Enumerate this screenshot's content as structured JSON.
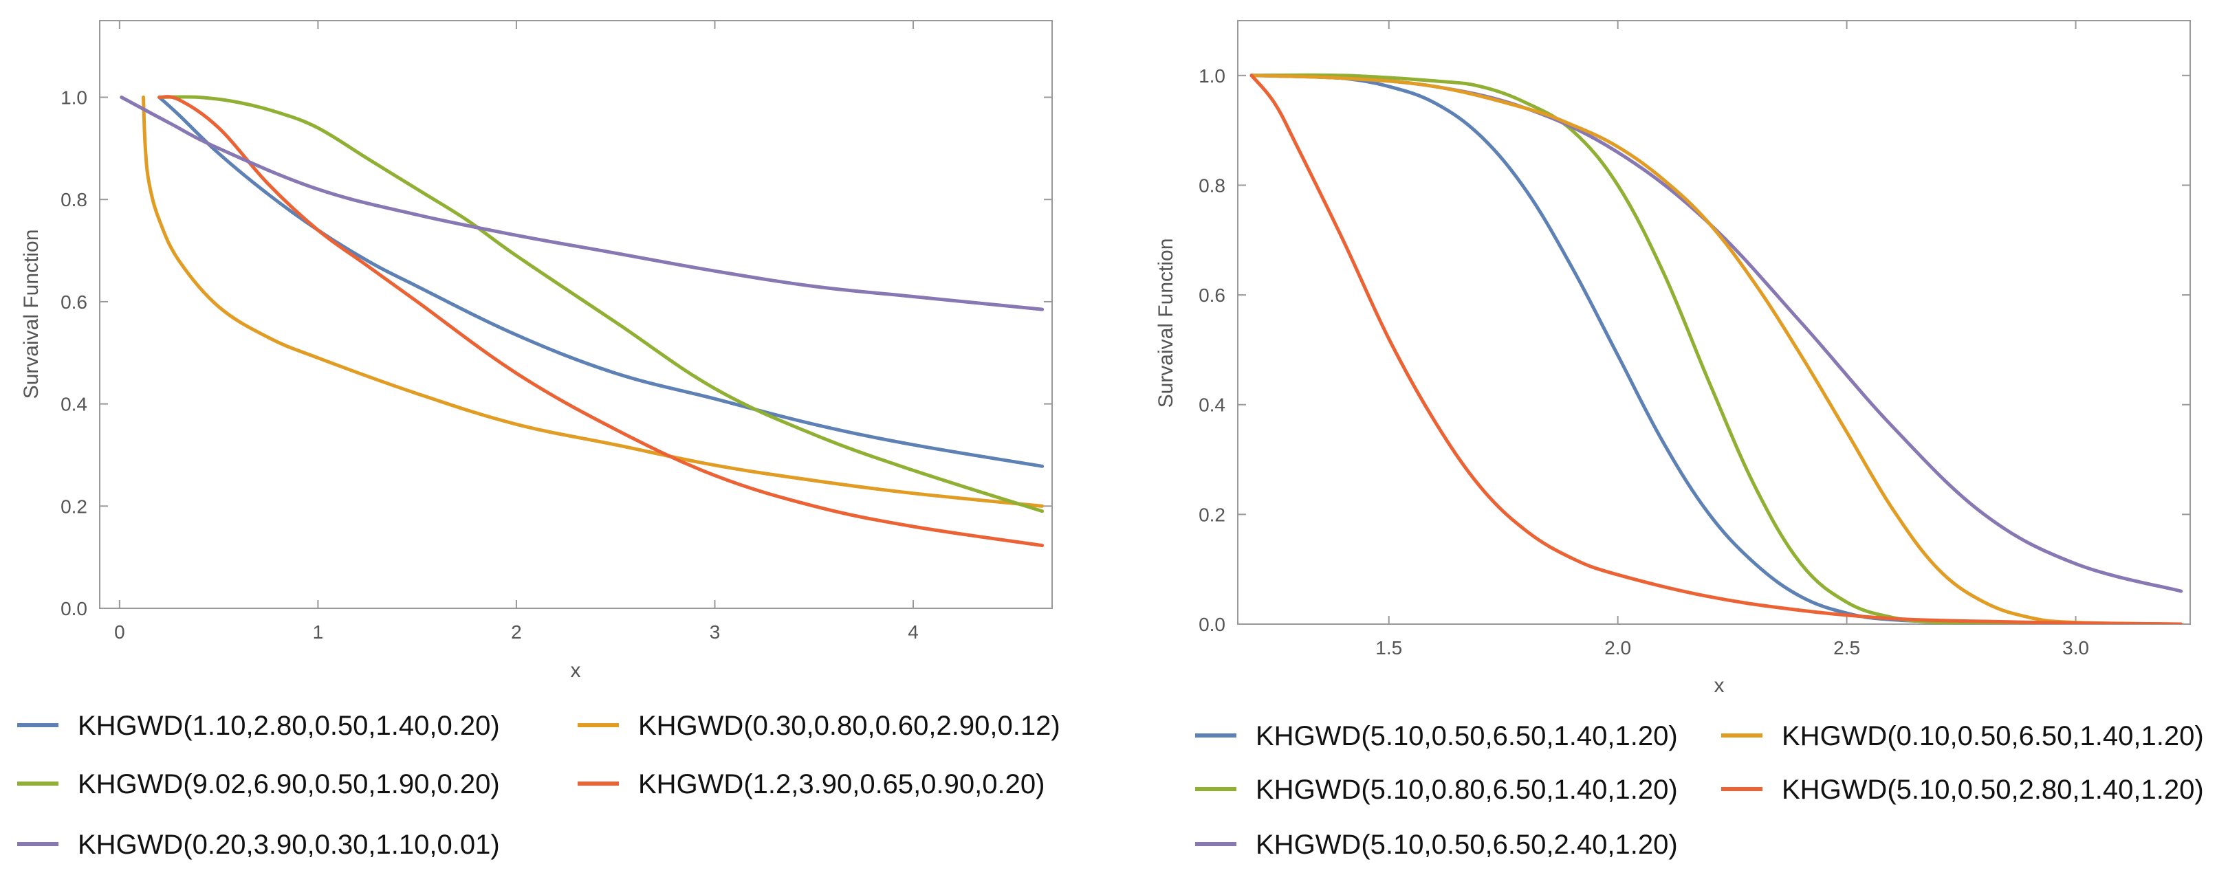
{
  "chart_data": [
    {
      "type": "line",
      "xlabel": "x",
      "ylabel": "Survaival Function",
      "xlim": [
        -0.1,
        4.7
      ],
      "ylim": [
        0,
        1.15
      ],
      "xticks": [
        0,
        1,
        2,
        3,
        4
      ],
      "xtick_labels": [
        "0",
        "1",
        "2",
        "3",
        "4"
      ],
      "yticks": [
        0,
        0.2,
        0.4,
        0.6,
        0.8,
        1.0
      ],
      "ytick_labels": [
        "0.0",
        "0.2",
        "0.4",
        "0.6",
        "0.8",
        "1.0"
      ],
      "legend_position": "bottom",
      "legend_order": [
        0,
        1,
        2,
        3,
        4
      ],
      "series": [
        {
          "name": "KHGWD(1.10,2.80,0.50,1.40,0.20)",
          "color": "#5E81B5",
          "x": [
            0.2,
            0.3,
            0.5,
            0.75,
            1.0,
            1.25,
            1.5,
            2.0,
            2.5,
            3.0,
            3.5,
            4.0,
            4.65
          ],
          "y": [
            1.0,
            0.965,
            0.89,
            0.81,
            0.74,
            0.68,
            0.63,
            0.535,
            0.46,
            0.41,
            0.36,
            0.32,
            0.278
          ]
        },
        {
          "name": "KHGWD(0.30,0.80,0.60,2.90,0.12)",
          "color": "#E19C24",
          "x": [
            0.12,
            0.13,
            0.15,
            0.2,
            0.3,
            0.5,
            0.75,
            1.0,
            1.5,
            2.0,
            2.5,
            3.0,
            3.5,
            4.0,
            4.65
          ],
          "y": [
            1.0,
            0.9,
            0.83,
            0.76,
            0.68,
            0.59,
            0.53,
            0.49,
            0.42,
            0.36,
            0.32,
            0.28,
            0.25,
            0.225,
            0.2
          ]
        },
        {
          "name": "KHGWD(9.02,6.90,0.50,1.90,0.20)",
          "color": "#8FB032",
          "x": [
            0.2,
            0.4,
            0.6,
            0.8,
            1.0,
            1.25,
            1.5,
            1.75,
            2.0,
            2.5,
            3.0,
            3.5,
            4.0,
            4.65
          ],
          "y": [
            1.0,
            1.0,
            0.99,
            0.97,
            0.94,
            0.88,
            0.82,
            0.76,
            0.69,
            0.56,
            0.43,
            0.34,
            0.27,
            0.19
          ]
        },
        {
          "name": "KHGWD(1.2,3.90,0.65,0.90,0.20)",
          "color": "#EB6235",
          "x": [
            0.2,
            0.3,
            0.5,
            0.75,
            1.0,
            1.25,
            1.5,
            2.0,
            2.5,
            3.0,
            3.5,
            4.0,
            4.65
          ],
          "y": [
            1.0,
            0.995,
            0.94,
            0.83,
            0.74,
            0.67,
            0.6,
            0.46,
            0.35,
            0.26,
            0.2,
            0.16,
            0.123
          ]
        },
        {
          "name": "KHGWD(0.20,3.90,0.30,1.10,0.01)",
          "color": "#8778B3",
          "x": [
            0.01,
            0.25,
            0.5,
            1.0,
            1.5,
            2.0,
            2.5,
            3.0,
            3.5,
            4.0,
            4.65
          ],
          "y": [
            1.0,
            0.95,
            0.9,
            0.82,
            0.77,
            0.73,
            0.695,
            0.66,
            0.63,
            0.61,
            0.585
          ]
        }
      ]
    },
    {
      "type": "line",
      "xlabel": "x",
      "ylabel": "Survaival Function",
      "xlim": [
        1.17,
        3.25
      ],
      "ylim": [
        0,
        1.1
      ],
      "xticks": [
        1.5,
        2.0,
        2.5,
        3.0
      ],
      "xtick_labels": [
        "1.5",
        "2.0",
        "2.5",
        "3.0"
      ],
      "yticks": [
        0,
        0.2,
        0.4,
        0.6,
        0.8,
        1.0
      ],
      "ytick_labels": [
        "0.0",
        "0.2",
        "0.4",
        "0.6",
        "0.8",
        "1.0"
      ],
      "legend_position": "bottom",
      "legend_order": [
        0,
        3,
        1,
        4,
        2
      ],
      "series": [
        {
          "name": "KHGWD(5.10,0.50,6.50,1.40,1.20)",
          "color": "#5E81B5",
          "x": [
            1.2,
            1.3,
            1.4,
            1.5,
            1.6,
            1.7,
            1.8,
            1.9,
            2.0,
            2.1,
            2.2,
            2.3,
            2.4,
            2.5,
            2.6,
            2.8,
            3.0,
            3.23
          ],
          "y": [
            1.0,
            1.0,
            0.995,
            0.98,
            0.95,
            0.89,
            0.79,
            0.65,
            0.49,
            0.33,
            0.2,
            0.11,
            0.05,
            0.02,
            0.008,
            0.002,
            0.0,
            0.0
          ]
        },
        {
          "name": "KHGWD(5.10,0.80,6.50,1.40,1.20)",
          "color": "#8FB032",
          "x": [
            1.2,
            1.4,
            1.6,
            1.7,
            1.8,
            1.9,
            2.0,
            2.1,
            2.2,
            2.3,
            2.4,
            2.5,
            2.6,
            2.7,
            2.8,
            3.0,
            3.23
          ],
          "y": [
            1.0,
            1.0,
            0.99,
            0.98,
            0.95,
            0.9,
            0.8,
            0.64,
            0.44,
            0.25,
            0.11,
            0.04,
            0.012,
            0.003,
            0.0,
            0.0,
            0.0
          ]
        },
        {
          "name": "KHGWD(5.10,0.50,6.50,2.40,1.20)",
          "color": "#8778B3",
          "x": [
            1.2,
            1.4,
            1.6,
            1.8,
            2.0,
            2.2,
            2.4,
            2.6,
            2.8,
            3.0,
            3.23
          ],
          "y": [
            1.0,
            0.995,
            0.98,
            0.94,
            0.86,
            0.73,
            0.55,
            0.36,
            0.2,
            0.11,
            0.06
          ]
        },
        {
          "name": "KHGWD(0.10,0.50,6.50,1.40,1.20)",
          "color": "#E19C24",
          "x": [
            1.2,
            1.4,
            1.6,
            1.8,
            1.9,
            2.0,
            2.1,
            2.2,
            2.3,
            2.4,
            2.5,
            2.6,
            2.7,
            2.8,
            2.9,
            3.0,
            3.23
          ],
          "y": [
            1.0,
            0.995,
            0.98,
            0.94,
            0.91,
            0.87,
            0.81,
            0.73,
            0.62,
            0.49,
            0.35,
            0.21,
            0.1,
            0.04,
            0.012,
            0.003,
            0.0
          ]
        },
        {
          "name": "KHGWD(5.10,0.50,2.80,1.40,1.20)",
          "color": "#EB6235",
          "x": [
            1.2,
            1.25,
            1.3,
            1.4,
            1.5,
            1.6,
            1.7,
            1.8,
            1.9,
            2.0,
            2.2,
            2.4,
            2.6,
            2.8,
            3.0,
            3.23
          ],
          "y": [
            1.0,
            0.95,
            0.87,
            0.7,
            0.52,
            0.37,
            0.25,
            0.17,
            0.12,
            0.09,
            0.05,
            0.025,
            0.01,
            0.005,
            0.002,
            0.0
          ]
        }
      ]
    }
  ]
}
